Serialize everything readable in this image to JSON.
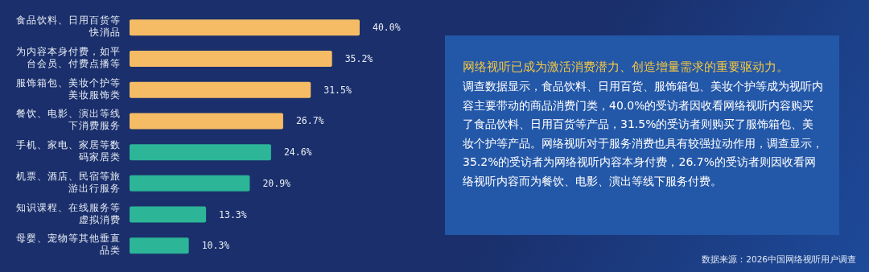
{
  "chart_data": {
    "type": "bar",
    "orientation": "horizontal",
    "categories": [
      "食品饮料、日用百货等快消品",
      "为内容本身付费，如平台会员、付费点播等",
      "服饰箱包、美妆个护等美妆服饰类",
      "餐饮、电影、演出等线下消费服务",
      "手机、家电、家居等数码家居类",
      "机票、酒店、民宿等旅游出行服务",
      "知识课程、在线服务等虚拟消费",
      "母婴、宠物等其他垂直品类"
    ],
    "values": [
      40.0,
      35.2,
      31.5,
      26.7,
      24.6,
      20.9,
      13.3,
      10.3
    ],
    "value_labels": [
      "40.0%",
      "35.2%",
      "31.5%",
      "26.7%",
      "24.6%",
      "20.9%",
      "13.3%",
      "10.3%"
    ],
    "colors": [
      "#f5bc65",
      "#f5bc65",
      "#f5bc65",
      "#f5bc65",
      "#2cb597",
      "#2cb597",
      "#2cb597",
      "#2cb597"
    ],
    "annotations": [
      "网络视听已成为激活消费潜力、创造增量需求的重要驱动力。",
      "调查数据显示，食品饮料、日用百货、服饰箱包、美妆个护等成为视听内容主要带动的商品消费门类，40.0%的受访者因收看网络视听内容购买了食品饮料、日用百货等产品，31.5%的受访者则购买了服饰箱包、美妆个护等产品。网络视听对于服务消费也具有较强拉动作用，调查显示，35.2%的受访者为网络视听内容本身付费，26.7%的受访者则因收看网络视听内容而为餐饮、电影、演出等线下服务付费。",
      "数据来源：2026中国网络视听用户调查"
    ]
  }
}
